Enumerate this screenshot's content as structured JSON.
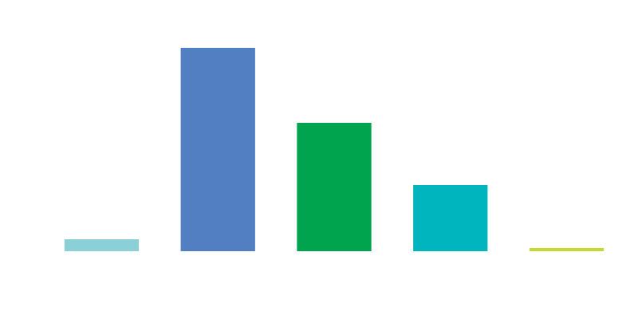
{
  "chart_data": {
    "type": "bar",
    "categories": [
      null,
      null,
      null,
      null,
      null
    ],
    "values": [
      15,
      255,
      161,
      83,
      4
    ],
    "colors": [
      "#8ad0d6",
      "#517fc1",
      "#00a44f",
      "#00b5bd",
      "#c5d932"
    ],
    "ylim": [
      0,
      300
    ]
  }
}
